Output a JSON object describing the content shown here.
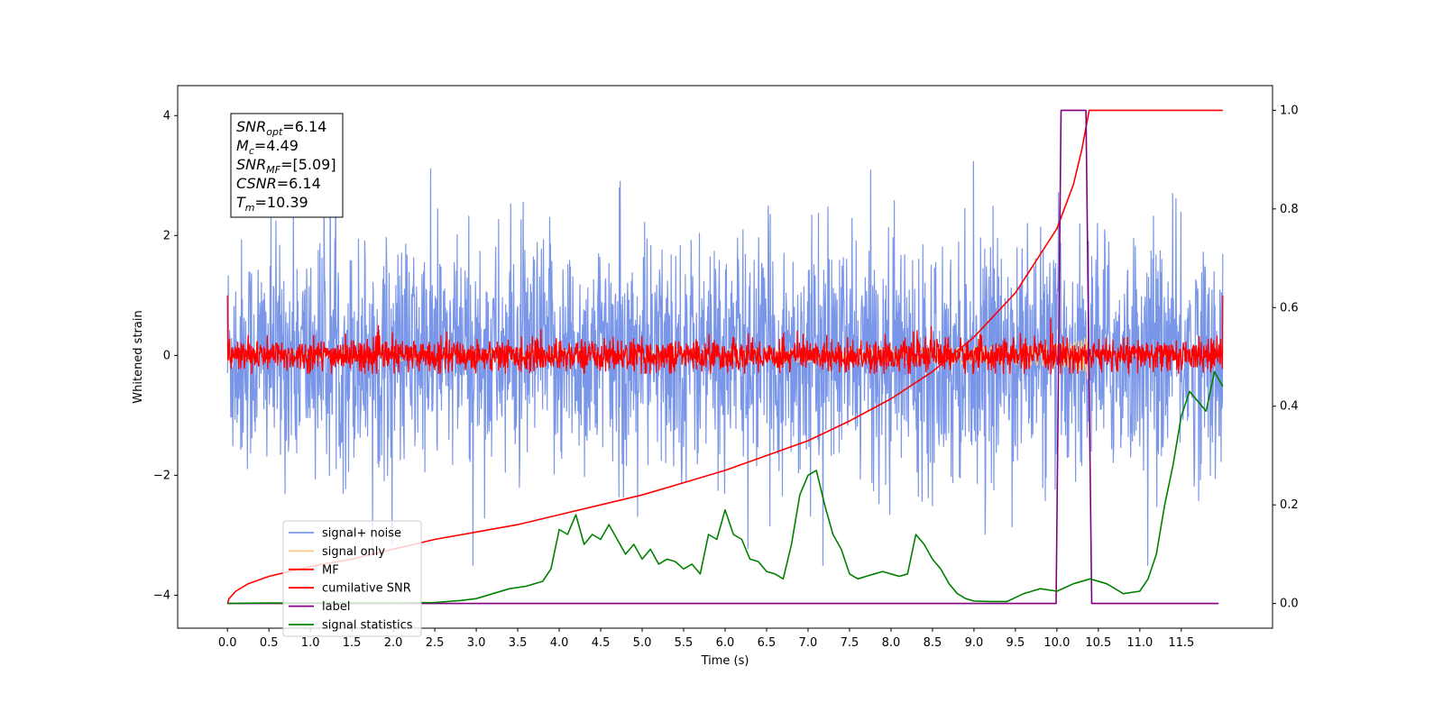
{
  "chart_data": {
    "type": "line",
    "title": "",
    "xlabel": "Time (s)",
    "ylabel": "Whitened strain",
    "xlim": [
      -0.6,
      12.6
    ],
    "ylim": [
      -4.55,
      4.5
    ],
    "ylim_right": [
      -0.05,
      1.05
    ],
    "x_ticks": [
      0.0,
      0.5,
      1.0,
      1.5,
      2.0,
      2.5,
      3.0,
      3.5,
      4.0,
      4.5,
      5.0,
      5.5,
      6.0,
      6.5,
      7.0,
      7.5,
      8.0,
      8.5,
      9.0,
      9.5,
      10.0,
      10.5,
      11.0,
      11.5
    ],
    "x_tick_labels": [
      "0.0",
      "0.5",
      "1.0",
      "1.5",
      "2.0",
      "2.5",
      "3.0",
      "3.5",
      "4.0",
      "4.5",
      "5.0",
      "5.5",
      "6.0",
      "6.5",
      "7.0",
      "7.5",
      "8.0",
      "8.5",
      "9.0",
      "9.5",
      "10.0",
      "10.5",
      "11.0",
      "11.5"
    ],
    "y_ticks": [
      -4,
      -2,
      0,
      2,
      4
    ],
    "y_tick_labels": [
      "−4",
      "−2",
      "0",
      "2",
      "4"
    ],
    "y_right_ticks": [
      0.0,
      0.2,
      0.4,
      0.6,
      0.8,
      1.0
    ],
    "y_right_tick_labels": [
      "0.0",
      "0.2",
      "0.4",
      "0.6",
      "0.8",
      "1.0"
    ],
    "grid": false,
    "legend_position": "lower-left",
    "series": [
      {
        "name": "signal+ noise",
        "color": "#7a96e8",
        "axis": "left",
        "kind": "noise",
        "x_range": [
          0.0,
          12.0
        ],
        "envelope": [
          -3.5,
          4.1
        ]
      },
      {
        "name": "signal only",
        "color": "#ffc880",
        "axis": "left",
        "kind": "chirp",
        "x_range": [
          0.0,
          12.0
        ],
        "peak_amplitude": 0.4,
        "peak_time": 10.39
      },
      {
        "name": "MF",
        "color": "#ff0000",
        "axis": "left",
        "kind": "noise",
        "x_range": [
          0.0,
          12.0
        ],
        "envelope": [
          -0.3,
          1.0
        ]
      },
      {
        "name": "cumilative SNR",
        "color": "#ff0000",
        "axis": "right",
        "x": [
          0.0,
          0.02,
          0.1,
          0.25,
          0.5,
          1.0,
          1.5,
          2.0,
          2.5,
          3.0,
          3.5,
          4.0,
          4.5,
          5.0,
          5.5,
          6.0,
          6.5,
          7.0,
          7.5,
          8.0,
          8.5,
          9.0,
          9.5,
          10.0,
          10.2,
          10.3,
          10.39,
          10.5,
          11.0,
          11.5,
          12.0
        ],
        "y": [
          0.0,
          0.01,
          0.025,
          0.04,
          0.055,
          0.075,
          0.09,
          0.11,
          0.13,
          0.145,
          0.16,
          0.18,
          0.2,
          0.22,
          0.245,
          0.27,
          0.3,
          0.33,
          0.37,
          0.415,
          0.47,
          0.54,
          0.63,
          0.76,
          0.85,
          0.92,
          1.0,
          1.0,
          1.0,
          1.0,
          1.0
        ]
      },
      {
        "name": "label",
        "color": "#800080",
        "axis": "right",
        "x": [
          0.0,
          9.99,
          10.05,
          10.35,
          10.42,
          11.95
        ],
        "y": [
          0.0,
          0.0,
          1.0,
          1.0,
          0.0,
          0.0
        ]
      },
      {
        "name": "signal statistics",
        "color": "#008000",
        "axis": "right",
        "x": [
          0.0,
          0.5,
          1.0,
          1.5,
          2.0,
          2.5,
          2.8,
          3.0,
          3.2,
          3.4,
          3.6,
          3.8,
          3.9,
          4.0,
          4.1,
          4.2,
          4.3,
          4.4,
          4.5,
          4.6,
          4.7,
          4.8,
          4.9,
          5.0,
          5.1,
          5.2,
          5.3,
          5.4,
          5.5,
          5.6,
          5.7,
          5.8,
          5.9,
          6.0,
          6.1,
          6.2,
          6.3,
          6.4,
          6.5,
          6.6,
          6.7,
          6.8,
          6.9,
          7.0,
          7.1,
          7.2,
          7.3,
          7.4,
          7.5,
          7.6,
          7.7,
          7.8,
          7.9,
          8.0,
          8.1,
          8.2,
          8.3,
          8.4,
          8.5,
          8.6,
          8.7,
          8.8,
          8.9,
          9.0,
          9.2,
          9.4,
          9.6,
          9.8,
          10.0,
          10.2,
          10.4,
          10.6,
          10.8,
          11.0,
          11.1,
          11.2,
          11.3,
          11.4,
          11.5,
          11.6,
          11.7,
          11.8,
          11.9,
          12.0
        ],
        "y": [
          0.0,
          0.001,
          0.001,
          0.001,
          0.001,
          0.002,
          0.006,
          0.01,
          0.02,
          0.03,
          0.035,
          0.045,
          0.07,
          0.15,
          0.14,
          0.18,
          0.12,
          0.14,
          0.13,
          0.16,
          0.13,
          0.1,
          0.12,
          0.09,
          0.11,
          0.08,
          0.09,
          0.085,
          0.07,
          0.08,
          0.06,
          0.14,
          0.13,
          0.19,
          0.14,
          0.13,
          0.09,
          0.085,
          0.065,
          0.06,
          0.05,
          0.12,
          0.22,
          0.26,
          0.27,
          0.2,
          0.14,
          0.11,
          0.06,
          0.05,
          0.055,
          0.06,
          0.065,
          0.06,
          0.055,
          0.06,
          0.14,
          0.12,
          0.09,
          0.07,
          0.04,
          0.02,
          0.01,
          0.005,
          0.004,
          0.004,
          0.02,
          0.03,
          0.025,
          0.04,
          0.05,
          0.04,
          0.02,
          0.025,
          0.05,
          0.1,
          0.2,
          0.28,
          0.38,
          0.43,
          0.41,
          0.39,
          0.47,
          0.44
        ]
      }
    ],
    "annotations": [
      {
        "base": "SNR",
        "sub": "opt",
        "value": "=6.14"
      },
      {
        "base": "M",
        "sub": "c",
        "value": "=4.49"
      },
      {
        "base": "SNR",
        "sub": "MF",
        "value": "=[5.09]"
      },
      {
        "base": "CSNR",
        "sub": "",
        "value": "=6.14"
      },
      {
        "base": "T",
        "sub": "m",
        "value": "=10.39"
      }
    ]
  }
}
